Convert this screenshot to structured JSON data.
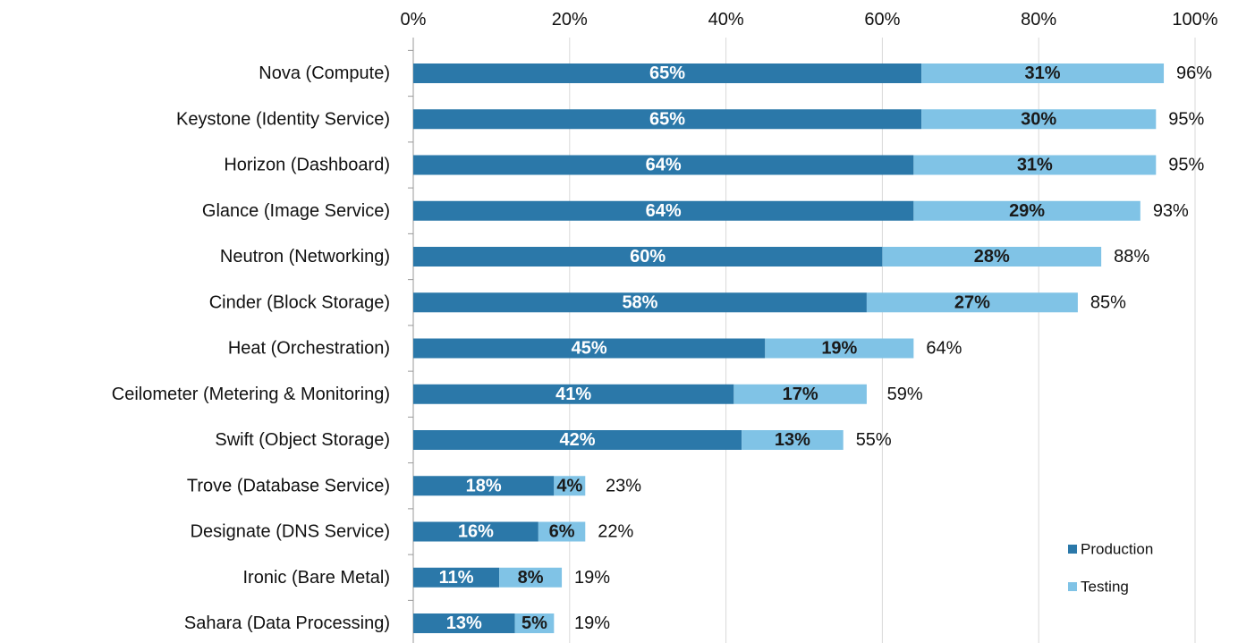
{
  "chart_data": {
    "type": "stacked-barh",
    "categories": [
      "Nova (Compute)",
      "Keystone (Identity Service)",
      "Horizon (Dashboard)",
      "Glance (Image Service)",
      "Neutron (Networking)",
      "Cinder (Block Storage)",
      "Heat (Orchestration)",
      "Ceilometer (Metering & Monitoring)",
      "Swift (Object Storage)",
      "Trove (Database Service)",
      "Designate (DNS Service)",
      "Ironic (Bare Metal)",
      "Sahara (Data Processing)"
    ],
    "series": [
      {
        "name": "Production",
        "color": "#2b78a9",
        "label_color": "#ffffff",
        "values": [
          65,
          65,
          64,
          64,
          60,
          58,
          45,
          41,
          42,
          18,
          16,
          11,
          13
        ],
        "value_labels": [
          "65%",
          "65%",
          "64%",
          "64%",
          "60%",
          "58%",
          "45%",
          "41%",
          "42%",
          "18%",
          "16%",
          "11%",
          "13%"
        ]
      },
      {
        "name": "Testing",
        "color": "#80c3e6",
        "label_color": "#1a1a1a",
        "values": [
          31,
          30,
          31,
          29,
          28,
          27,
          19,
          17,
          13,
          4,
          6,
          8,
          5
        ],
        "value_labels": [
          "31%",
          "30%",
          "31%",
          "29%",
          "28%",
          "27%",
          "19%",
          "17%",
          "13%",
          "4%",
          "6%",
          "8%",
          "5%"
        ]
      }
    ],
    "totals": {
      "values": [
        96,
        95,
        95,
        93,
        88,
        85,
        64,
        59,
        55,
        23,
        22,
        19,
        19
      ],
      "value_labels": [
        "96%",
        "95%",
        "95%",
        "93%",
        "88%",
        "85%",
        "64%",
        "59%",
        "55%",
        "23%",
        "22%",
        "19%",
        "19%"
      ]
    },
    "xlim": [
      0,
      100
    ],
    "xticks": [
      {
        "value": 0,
        "label": "0%"
      },
      {
        "value": 20,
        "label": "20%"
      },
      {
        "value": 40,
        "label": "40%"
      },
      {
        "value": 60,
        "label": "60%"
      },
      {
        "value": 80,
        "label": "80%"
      },
      {
        "value": 100,
        "label": "100%"
      }
    ],
    "grid": true,
    "legend": "lower right"
  }
}
